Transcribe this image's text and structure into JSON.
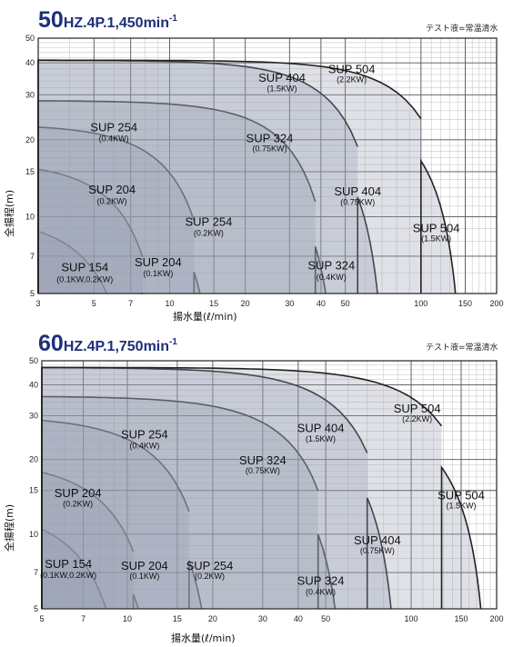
{
  "test_liquid_note": "テスト液=常温清水",
  "chart_data": [
    {
      "type": "area",
      "title_main": "50",
      "title_rest": "HZ.4P.1,450min",
      "title_sup": "-1",
      "xlabel": "揚水量(ℓ/min)",
      "ylabel": "全揚程(m)",
      "x_scale": "log",
      "y_scale": "log",
      "xlim": [
        3,
        200
      ],
      "ylim": [
        5,
        50
      ],
      "x_ticks": [
        3,
        5,
        7,
        10,
        15,
        20,
        30,
        40,
        50,
        100,
        150,
        200
      ],
      "y_ticks": [
        5,
        7,
        10,
        15,
        20,
        30,
        40,
        50
      ],
      "grid": true,
      "series": [
        {
          "name": "SUP 154",
          "kw": "(0.1KW,0.2KW)",
          "q_max": 7.7,
          "h_max": 10.0,
          "segment": "full",
          "step_x": null,
          "label": {
            "name_at": [
              4.6,
              6.1
            ],
            "kw_at": [
              4.6,
              5.55
            ]
          }
        },
        {
          "name": "SUP 204",
          "kw": "(0.2KW)",
          "q_max": 10.0,
          "h_max": 16.5,
          "segment": "left",
          "step_x": 7.8,
          "label": {
            "name_at": [
              5.9,
              12.3
            ],
            "kw_at": [
              5.9,
              11.2
            ]
          }
        },
        {
          "name": "SUP 204",
          "kw": "(0.1KW)",
          "q_max": 10.0,
          "h_max": 11.5,
          "segment": "right",
          "step_x": 7.8,
          "label": {
            "name_at": [
              9.0,
              6.4
            ],
            "kw_at": [
              9.0,
              5.85
            ]
          }
        },
        {
          "name": "SUP 254",
          "kw": "(0.4KW)",
          "q_max": 16.0,
          "h_max": 23.0,
          "segment": "left",
          "step_x": 12.5,
          "label": {
            "name_at": [
              6.0,
              21.6
            ],
            "kw_at": [
              6.0,
              19.7
            ]
          }
        },
        {
          "name": "SUP 254",
          "kw": "(0.2KW)",
          "q_max": 16.0,
          "h_max": 14.5,
          "segment": "right",
          "step_x": 12.5,
          "label": {
            "name_at": [
              14.3,
              9.2
            ],
            "kw_at": [
              14.3,
              8.4
            ]
          }
        },
        {
          "name": "SUP 324",
          "kw": "(0.75KW)",
          "q_max": 48.0,
          "h_max": 28.5,
          "segment": "left",
          "step_x": 38.0,
          "label": {
            "name_at": [
              25.0,
              19.6
            ],
            "kw_at": [
              25.0,
              18.0
            ]
          }
        },
        {
          "name": "SUP 324",
          "kw": "(0.4KW)",
          "q_max": 48.0,
          "h_max": 19.0,
          "segment": "right",
          "step_x": 38.0,
          "label": {
            "name_at": [
              44.0,
              6.2
            ],
            "kw_at": [
              44.0,
              5.65
            ]
          }
        },
        {
          "name": "SUP 404",
          "kw": "(1.5KW)",
          "q_max": 74.0,
          "h_max": 41.0,
          "segment": "left",
          "step_x": 56.0,
          "label": {
            "name_at": [
              28.0,
              33.7
            ],
            "kw_at": [
              28.0,
              31.0
            ]
          }
        },
        {
          "name": "SUP 404",
          "kw": "(0.75KW)",
          "q_max": 74.0,
          "h_max": 26.0,
          "segment": "right",
          "step_x": 56.0,
          "label": {
            "name_at": [
              56.0,
              12.1
            ],
            "kw_at": [
              56.0,
              11.1
            ]
          }
        },
        {
          "name": "SUP 504",
          "kw": "(2.2KW)",
          "q_max": 150.0,
          "h_max": 41.0,
          "segment": "left",
          "step_x": 100.0,
          "label": {
            "name_at": [
              53.0,
              36.5
            ],
            "kw_at": [
              53.0,
              33.6
            ]
          }
        },
        {
          "name": "SUP 504",
          "kw": "(1.5KW)",
          "q_max": 150.0,
          "h_max": 28.0,
          "segment": "right",
          "step_x": 100.0,
          "label": {
            "name_at": [
              115.0,
              8.7
            ],
            "kw_at": [
              115.0,
              8.0
            ]
          }
        }
      ]
    },
    {
      "type": "area",
      "title_main": "60",
      "title_rest": "HZ.4P.1,750min",
      "title_sup": "-1",
      "xlabel": "揚水量(ℓ/min)",
      "ylabel": "全揚程(m)",
      "x_scale": "log",
      "y_scale": "log",
      "xlim": [
        5,
        200
      ],
      "ylim": [
        5,
        50
      ],
      "x_ticks": [
        5,
        7,
        10,
        15,
        20,
        30,
        40,
        50,
        100,
        150,
        200
      ],
      "y_ticks": [
        5,
        7,
        10,
        15,
        20,
        30,
        40,
        50
      ],
      "grid": true,
      "series": [
        {
          "name": "SUP 154",
          "kw": "(0.1KW,0.2KW)",
          "q_max": 10.5,
          "h_max": 13.0,
          "segment": "full",
          "step_x": null,
          "label": {
            "name_at": [
              6.2,
              7.3
            ],
            "kw_at": [
              6.2,
              6.65
            ]
          }
        },
        {
          "name": "SUP 204",
          "kw": "(0.2KW)",
          "q_max": 13.5,
          "h_max": 20.0,
          "segment": "left",
          "step_x": 10.5,
          "label": {
            "name_at": [
              6.7,
              14.1
            ],
            "kw_at": [
              6.7,
              12.9
            ]
          }
        },
        {
          "name": "SUP 204",
          "kw": "(0.1KW)",
          "q_max": 13.5,
          "h_max": 13.5,
          "segment": "right",
          "step_x": 10.5,
          "label": {
            "name_at": [
              11.5,
              7.2
            ],
            "kw_at": [
              11.5,
              6.6
            ]
          }
        },
        {
          "name": "SUP 254",
          "kw": "(0.4KW)",
          "q_max": 21.0,
          "h_max": 30.0,
          "segment": "left",
          "step_x": 16.5,
          "label": {
            "name_at": [
              11.5,
              24.3
            ],
            "kw_at": [
              11.5,
              22.2
            ]
          }
        },
        {
          "name": "SUP 254",
          "kw": "(0.2KW)",
          "q_max": 21.0,
          "h_max": 19.0,
          "segment": "right",
          "step_x": 16.5,
          "label": {
            "name_at": [
              19.5,
              7.2
            ],
            "kw_at": [
              19.5,
              6.6
            ]
          }
        },
        {
          "name": "SUP 324",
          "kw": "(0.75KW)",
          "q_max": 60.0,
          "h_max": 36.0,
          "segment": "left",
          "step_x": 47.0,
          "label": {
            "name_at": [
              30.0,
              19.1
            ],
            "kw_at": [
              30.0,
              17.6
            ]
          }
        },
        {
          "name": "SUP 324",
          "kw": "(0.4KW)",
          "q_max": 60.0,
          "h_max": 24.0,
          "segment": "right",
          "step_x": 47.0,
          "label": {
            "name_at": [
              48.0,
              6.25
            ],
            "kw_at": [
              48.0,
              5.7
            ]
          }
        },
        {
          "name": "SUP 404",
          "kw": "(1.5KW)",
          "q_max": 92.0,
          "h_max": 47.0,
          "segment": "left",
          "step_x": 70.0,
          "label": {
            "name_at": [
              48.0,
              25.8
            ],
            "kw_at": [
              48.0,
              23.6
            ]
          }
        },
        {
          "name": "SUP 404",
          "kw": "(0.75KW)",
          "q_max": 92.0,
          "h_max": 31.0,
          "segment": "right",
          "step_x": 70.0,
          "label": {
            "name_at": [
              76.0,
              9.1
            ],
            "kw_at": [
              76.0,
              8.35
            ]
          }
        },
        {
          "name": "SUP 504",
          "kw": "(2.2KW)",
          "q_max": 190.0,
          "h_max": 47.0,
          "segment": "left",
          "step_x": 128.0,
          "label": {
            "name_at": [
              105.0,
              30.9
            ],
            "kw_at": [
              105.0,
              28.4
            ]
          }
        },
        {
          "name": "SUP 504",
          "kw": "(1.5KW)",
          "q_max": 190.0,
          "h_max": 32.0,
          "segment": "right",
          "step_x": 128.0,
          "label": {
            "name_at": [
              150.0,
              13.8
            ],
            "kw_at": [
              150.0,
              12.7
            ]
          }
        }
      ]
    }
  ]
}
